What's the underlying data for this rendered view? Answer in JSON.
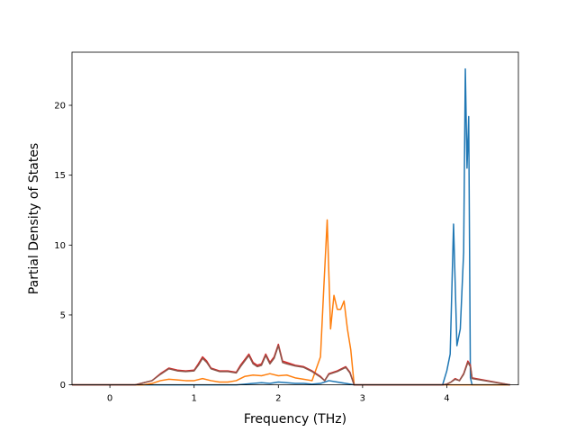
{
  "chart_data": {
    "type": "line",
    "title": "",
    "xlabel": "Frequency (THz)",
    "ylabel": "Partial Density of States",
    "xlim": [
      -0.45,
      4.85
    ],
    "ylim": [
      0,
      23.8
    ],
    "xticks": [
      0,
      1,
      2,
      3,
      4
    ],
    "yticks": [
      0,
      5,
      10,
      15,
      20
    ],
    "grid": false,
    "legend": "none",
    "series": [
      {
        "color": "#1f77b4",
        "x": [
          -0.45,
          1.5,
          1.6,
          1.7,
          1.8,
          1.9,
          2.0,
          2.1,
          2.2,
          2.3,
          2.4,
          2.5,
          2.6,
          2.7,
          2.8,
          2.9,
          3.0,
          3.95,
          4.0,
          4.04,
          4.08,
          4.12,
          4.16,
          4.2,
          4.22,
          4.24,
          4.26,
          4.28,
          4.3,
          4.75
        ],
        "y": [
          0,
          0,
          0.05,
          0.1,
          0.15,
          0.1,
          0.2,
          0.15,
          0.1,
          0.1,
          0.05,
          0.1,
          0.3,
          0.2,
          0.1,
          0,
          0,
          0,
          1,
          2.2,
          11.5,
          2.8,
          4,
          9.5,
          22.6,
          15.5,
          19.2,
          0.5,
          0,
          0
        ]
      },
      {
        "color": "#ff7f0e",
        "x": [
          -0.45,
          0.4,
          0.5,
          0.6,
          0.7,
          0.8,
          0.9,
          1.0,
          1.1,
          1.2,
          1.3,
          1.4,
          1.5,
          1.6,
          1.7,
          1.8,
          1.9,
          2.0,
          2.1,
          2.2,
          2.3,
          2.4,
          2.5,
          2.54,
          2.58,
          2.62,
          2.66,
          2.7,
          2.74,
          2.78,
          2.82,
          2.86,
          2.9,
          4.75
        ],
        "y": [
          0,
          0,
          0.1,
          0.3,
          0.4,
          0.35,
          0.3,
          0.3,
          0.45,
          0.3,
          0.2,
          0.2,
          0.3,
          0.6,
          0.7,
          0.65,
          0.8,
          0.65,
          0.7,
          0.5,
          0.4,
          0.3,
          2,
          7,
          11.8,
          4,
          6.4,
          5.4,
          5.4,
          6,
          4,
          2.5,
          0,
          0
        ]
      },
      {
        "color": "#d62728",
        "x": [
          -0.45,
          0.3,
          0.5,
          0.6,
          0.7,
          0.8,
          0.9,
          1.0,
          1.05,
          1.1,
          1.15,
          1.2,
          1.3,
          1.4,
          1.5,
          1.55,
          1.6,
          1.65,
          1.7,
          1.75,
          1.8,
          1.85,
          1.9,
          1.95,
          2.0,
          2.05,
          2.1,
          2.2,
          2.3,
          2.4,
          2.5,
          2.55,
          2.6,
          2.7,
          2.8,
          2.85,
          2.9,
          3.95,
          4.0,
          4.05,
          4.1,
          4.15,
          4.2,
          4.25,
          4.28,
          4.3,
          4.75
        ],
        "y": [
          0,
          0,
          0.3,
          0.8,
          1.2,
          1.05,
          1,
          1.05,
          1.5,
          2,
          1.7,
          1.2,
          1,
          1,
          0.9,
          1.4,
          1.8,
          2.2,
          1.6,
          1.4,
          1.5,
          2.2,
          1.6,
          2,
          2.9,
          1.7,
          1.6,
          1.4,
          1.3,
          1,
          0.6,
          0.3,
          0.8,
          1,
          1.3,
          0.9,
          0,
          0,
          0.05,
          0.2,
          0.45,
          0.3,
          0.8,
          1.7,
          1.4,
          0.5,
          0
        ]
      },
      {
        "color": "#8c564b",
        "x": [
          -0.45,
          0.3,
          0.5,
          0.6,
          0.7,
          0.8,
          0.9,
          1.0,
          1.05,
          1.1,
          1.15,
          1.2,
          1.3,
          1.4,
          1.5,
          1.55,
          1.6,
          1.65,
          1.7,
          1.75,
          1.8,
          1.85,
          1.9,
          1.95,
          2.0,
          2.05,
          2.1,
          2.2,
          2.3,
          2.4,
          2.5,
          2.55,
          2.6,
          2.7,
          2.8,
          2.85,
          2.9,
          3.95,
          4.0,
          4.05,
          4.1,
          4.15,
          4.2,
          4.25,
          4.28,
          4.3,
          4.75
        ],
        "y": [
          0,
          0,
          0.3,
          0.75,
          1.15,
          1,
          0.95,
          1,
          1.4,
          1.9,
          1.6,
          1.15,
          0.95,
          0.95,
          0.85,
          1.3,
          1.7,
          2.1,
          1.5,
          1.3,
          1.4,
          2.1,
          1.5,
          1.9,
          2.8,
          1.6,
          1.5,
          1.35,
          1.25,
          0.95,
          0.55,
          0.3,
          0.75,
          0.95,
          1.25,
          0.85,
          0,
          0,
          0.05,
          0.2,
          0.4,
          0.3,
          0.75,
          1.6,
          1.3,
          0.45,
          0
        ]
      }
    ]
  }
}
